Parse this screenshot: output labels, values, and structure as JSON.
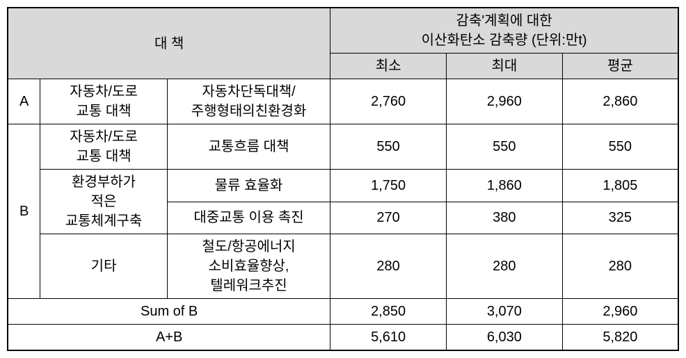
{
  "header": {
    "main_label": "대        책",
    "reduction_title_line1": "감축'계획에 대한",
    "reduction_title_line2": "이산화탄소 감축량 (단위:만t)",
    "col_min": "최소",
    "col_max": "최대",
    "col_avg": "평균"
  },
  "rows": [
    {
      "group": "A",
      "category": "자동차/도로\n교통 대책",
      "desc": "자동차단독대책/\n주행형태의친환경화",
      "min": "2,760",
      "max": "2,960",
      "avg": "2,860"
    },
    {
      "group": "B",
      "category": "자동차/도로\n교통 대책",
      "desc": "교통흐름 대책",
      "min": "550",
      "max": "550",
      "avg": "550"
    },
    {
      "group": "",
      "category": "환경부하가\n적은\n교통체계구축",
      "desc": "물류 효율화",
      "min": "1,750",
      "max": "1,860",
      "avg": "1,805"
    },
    {
      "group": "",
      "category": "",
      "desc": "대중교통 이용 촉진",
      "min": "270",
      "max": "380",
      "avg": "325"
    },
    {
      "group": "",
      "category": "기타",
      "desc": "철도/항공에너지\n소비효율향상,\n텔레워크추진",
      "min": "280",
      "max": "280",
      "avg": "280"
    }
  ],
  "summary": {
    "sum_b_label": "Sum of B",
    "sum_b_min": "2,850",
    "sum_b_max": "3,070",
    "sum_b_avg": "2,960",
    "ab_label": "A+B",
    "ab_min": "5,610",
    "ab_max": "6,030",
    "ab_avg": "5,820"
  }
}
